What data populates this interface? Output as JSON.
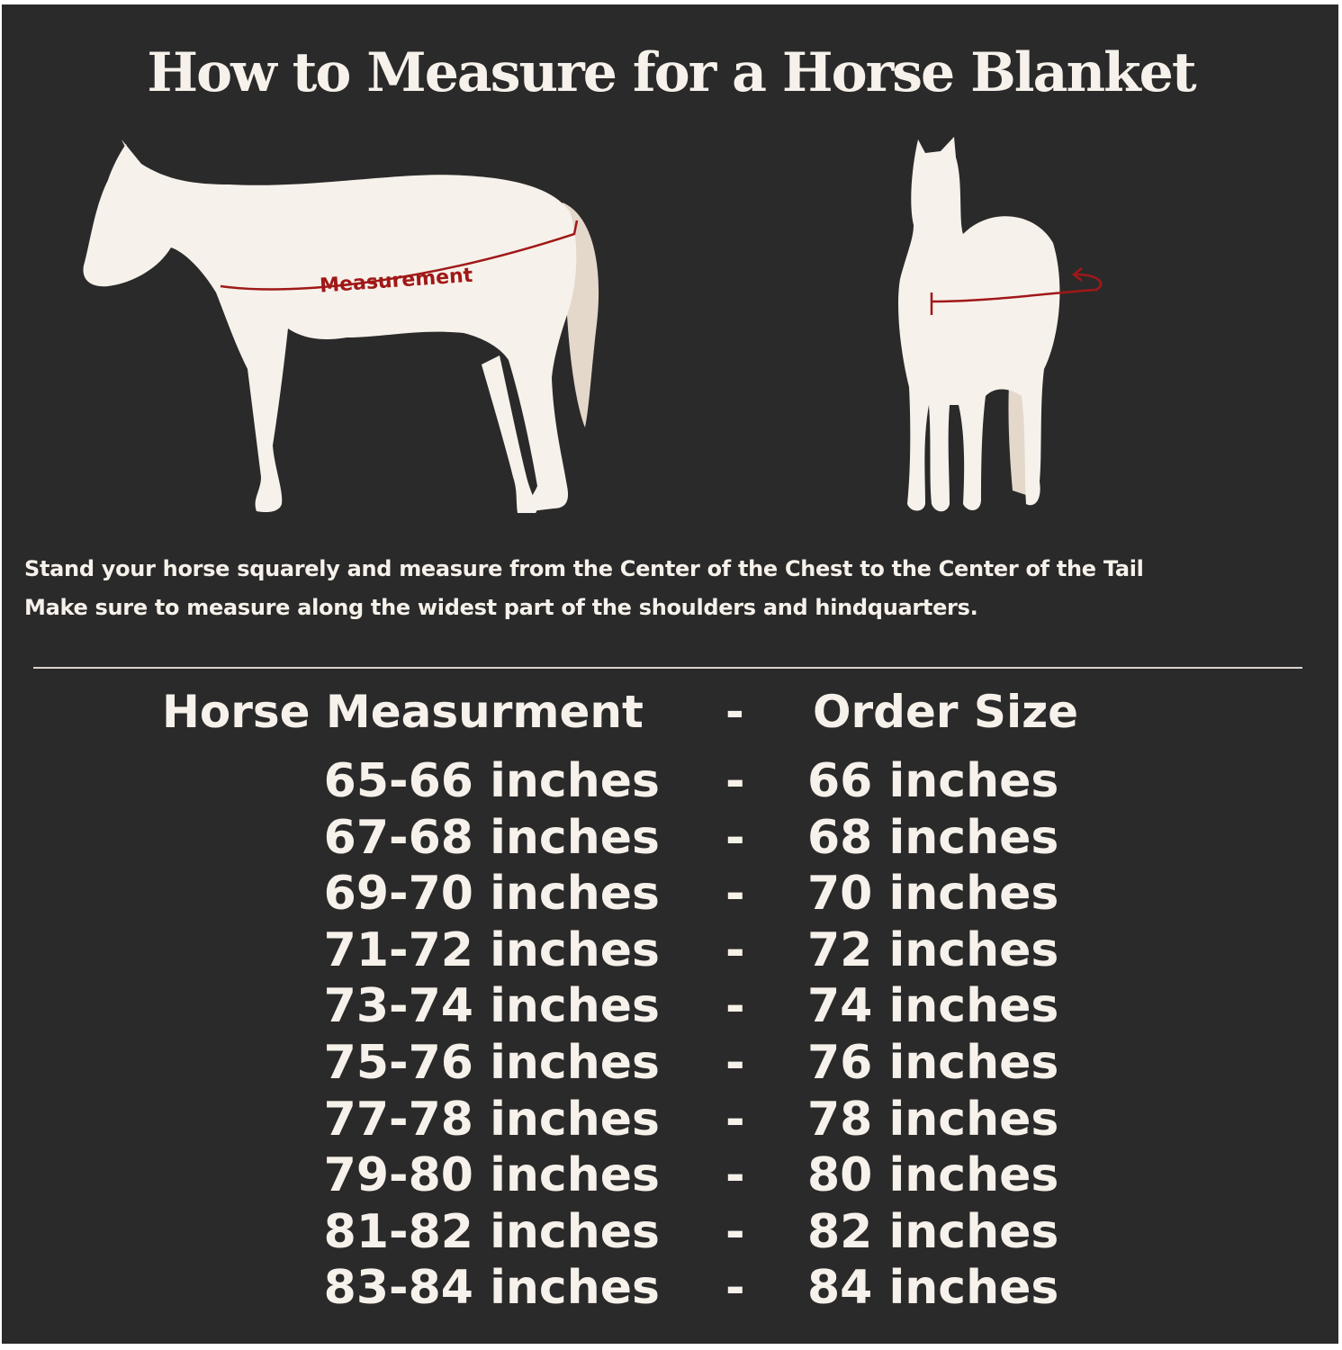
{
  "title": "How to Measure for a Horse Blanket",
  "diagram": {
    "measurement_label": "Measurement",
    "accent_color": "#a01818",
    "horse_color": "#f6f1ea",
    "tail_color": "#e4d8cb"
  },
  "instructions": [
    "Stand your horse squarely and measure from the Center of the Chest to the Center of the Tail",
    "Make sure to measure along the widest part of the shoulders and hindquarters."
  ],
  "table": {
    "headers": {
      "measurement": "Horse Measurment",
      "separator": "-",
      "size": "Order Size"
    },
    "rows": [
      {
        "measurement": "65-66 inches",
        "separator": "-",
        "size": "66 inches"
      },
      {
        "measurement": "67-68 inches",
        "separator": "-",
        "size": "68 inches"
      },
      {
        "measurement": "69-70 inches",
        "separator": "-",
        "size": "70 inches"
      },
      {
        "measurement": "71-72 inches",
        "separator": "-",
        "size": "72 inches"
      },
      {
        "measurement": "73-74 inches",
        "separator": "-",
        "size": "74 inches"
      },
      {
        "measurement": "75-76 inches",
        "separator": "-",
        "size": "76 inches"
      },
      {
        "measurement": "77-78 inches",
        "separator": "-",
        "size": "78 inches"
      },
      {
        "measurement": "79-80 inches",
        "separator": "-",
        "size": "80 inches"
      },
      {
        "measurement": "81-82 inches",
        "separator": "-",
        "size": "82 inches"
      },
      {
        "measurement": "83-84 inches",
        "separator": "-",
        "size": "84 inches"
      }
    ]
  }
}
